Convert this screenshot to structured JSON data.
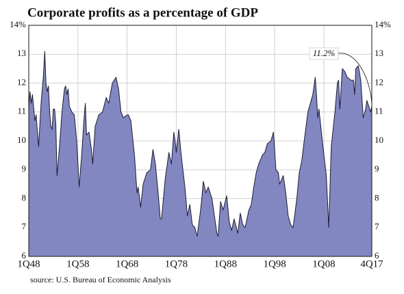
{
  "chart_data": {
    "type": "area",
    "title": "Corporate profits as a percentage of GDP",
    "source": "source: U.S. Bureau of Economic Analysis",
    "annotation": "11.2%",
    "color": "#8287c2",
    "line_color": "#1a1a2e",
    "grid": true,
    "xlim": [
      1948,
      2017.75
    ],
    "xticks": [
      {
        "value": 1948,
        "label": "1Q48"
      },
      {
        "value": 1958,
        "label": "1Q58"
      },
      {
        "value": 1968,
        "label": "1Q68"
      },
      {
        "value": 1978,
        "label": "1Q78"
      },
      {
        "value": 1988,
        "label": "1Q88"
      },
      {
        "value": 1998,
        "label": "1Q98"
      },
      {
        "value": 2008,
        "label": "1Q08"
      },
      {
        "value": 2017.75,
        "label": "4Q17"
      }
    ],
    "ylim": [
      6,
      14
    ],
    "yticks": [
      6,
      7,
      8,
      9,
      10,
      11,
      12,
      13,
      {
        "value": 14,
        "label": "14%"
      }
    ],
    "x": [
      1948,
      1948.25,
      1948.5,
      1948.75,
      1949.25,
      1949.5,
      1950,
      1950.5,
      1951,
      1951.25,
      1951.5,
      1951.75,
      1952,
      1952.25,
      1952.5,
      1952.75,
      1953,
      1953.25,
      1953.5,
      1953.75,
      1954.25,
      1954.75,
      1955.25,
      1955.5,
      1955.75,
      1956,
      1956.25,
      1956.75,
      1957.25,
      1957.75,
      1958.25,
      1958.75,
      1959.25,
      1959.5,
      1959.75,
      1960.25,
      1960.75,
      1961,
      1961.5,
      1962.25,
      1963,
      1963.75,
      1964.25,
      1965,
      1965.75,
      1966.25,
      1966.75,
      1967.25,
      1968,
      1968.25,
      1968.75,
      1969.5,
      1970,
      1970.25,
      1970.75,
      1971.25,
      1972,
      1972.75,
      1973.25,
      1973.75,
      1974.25,
      1974.75,
      1975,
      1975.75,
      1976.5,
      1977,
      1977.5,
      1977.75,
      1978,
      1978.5,
      1979,
      1979.75,
      1980.25,
      1980.75,
      1981.25,
      1981.75,
      1982.25,
      1983,
      1983.5,
      1984,
      1984.5,
      1985.25,
      1985.75,
      1986.25,
      1986.5,
      1987,
      1987.5,
      1988.25,
      1988.75,
      1989.25,
      1989.75,
      1990.5,
      1991,
      1991.5,
      1992,
      1992.75,
      1993.25,
      1993.75,
      1994.25,
      1994.75,
      1995.5,
      1996,
      1996.5,
      1997.25,
      1997.75,
      1998,
      1998.25,
      1998.75,
      1999,
      1999.75,
      2000.25,
      2000.75,
      2001.25,
      2001.75,
      2002.5,
      2003,
      2003.5,
      2004,
      2004.75,
      2005.25,
      2005.75,
      2006.25,
      2006.5,
      2006.75,
      2007,
      2007.75,
      2008.5,
      2009,
      2009.5,
      2010.25,
      2010.75,
      2011,
      2011.25,
      2011.5,
      2011.75,
      2012.25,
      2012.75,
      2013.5,
      2014,
      2014.25,
      2014.5,
      2015,
      2015.5,
      2016,
      2016.5,
      2016.75,
      2017.5,
      2017.75
    ],
    "values": [
      11.2,
      11.7,
      11.3,
      11.6,
      10.7,
      10.9,
      9.8,
      11.3,
      12.3,
      13.1,
      12.0,
      11.7,
      11.9,
      11.0,
      10.5,
      10.4,
      11.1,
      11.1,
      10.6,
      8.8,
      9.8,
      11.0,
      11.8,
      11.9,
      11.6,
      11.8,
      11.2,
      11.0,
      10.9,
      10.0,
      8.4,
      9.5,
      10.8,
      11.3,
      10.2,
      10.3,
      9.7,
      9.2,
      10.5,
      10.9,
      11.0,
      11.5,
      11.3,
      12.0,
      12.2,
      11.8,
      11.0,
      10.8,
      10.9,
      10.9,
      10.7,
      9.5,
      8.2,
      8.4,
      7.7,
      8.5,
      8.9,
      9.0,
      9.7,
      9.2,
      8.3,
      7.3,
      7.3,
      8.7,
      9.6,
      9.2,
      10.3,
      10.0,
      9.6,
      10.4,
      9.5,
      8.4,
      7.4,
      7.8,
      7.1,
      7.0,
      6.7,
      7.7,
      8.6,
      8.2,
      8.4,
      8.0,
      7.4,
      6.8,
      6.7,
      7.9,
      7.6,
      8.1,
      7.2,
      6.9,
      7.3,
      6.8,
      7.5,
      7.1,
      7.0,
      7.6,
      7.8,
      8.4,
      8.9,
      9.2,
      9.5,
      9.6,
      9.9,
      10.0,
      10.3,
      9.7,
      9.0,
      8.9,
      8.5,
      8.8,
      8.2,
      7.4,
      7.1,
      7.0,
      8.0,
      8.9,
      9.3,
      10.0,
      11.0,
      11.3,
      11.6,
      12.2,
      11.6,
      10.8,
      11.1,
      9.9,
      8.8,
      7.0,
      9.8,
      11.0,
      12.0,
      12.1,
      11.1,
      11.8,
      12.5,
      12.4,
      12.2,
      12.1,
      12.1,
      11.6,
      12.5,
      12.6,
      12.1,
      10.8,
      11.1,
      11.4,
      11.0,
      11.2
    ]
  }
}
